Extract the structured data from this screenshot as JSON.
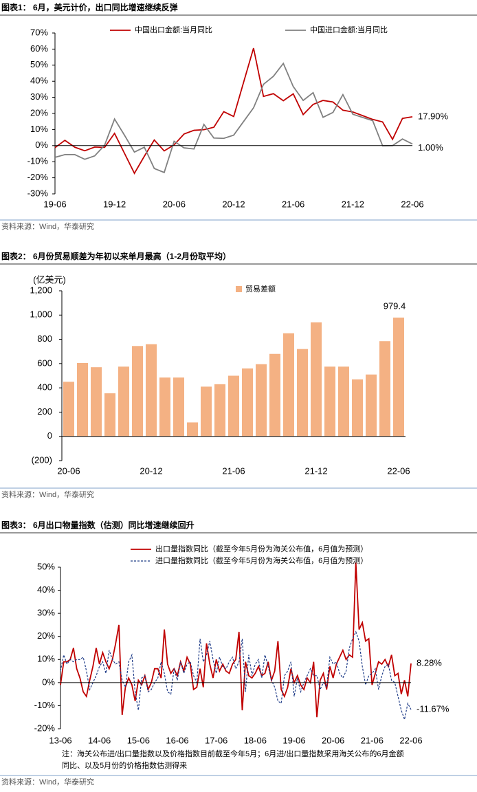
{
  "chart_data": [
    {
      "type": "line",
      "title": "图表1： 6月，美元计价，出口同比增速继续反弹",
      "source": "资料来源：Wind，华泰研究",
      "categories": [
        "19-06",
        null,
        null,
        null,
        null,
        null,
        "19-12",
        null,
        null,
        null,
        null,
        null,
        "20-06",
        null,
        null,
        null,
        null,
        null,
        "20-12",
        null,
        null,
        null,
        null,
        null,
        "21-06",
        null,
        null,
        null,
        null,
        null,
        "21-12",
        null,
        null,
        null,
        null,
        null,
        "22-06"
      ],
      "series": [
        {
          "name": "中国出口金额:当月同比",
          "color": "#c00000",
          "end_label": "17.90%",
          "values": [
            -1.3,
            3.3,
            -1.0,
            -3.2,
            -0.9,
            -1.1,
            7.6,
            -4.8,
            -17.2,
            -6.6,
            3.5,
            -3.3,
            0.5,
            7.2,
            9.5,
            9.9,
            11.4,
            21.1,
            18.1,
            39.4,
            60.6,
            30.6,
            32.3,
            27.9,
            32.2,
            19.3,
            25.6,
            28.1,
            27.1,
            22.0,
            20.9,
            18.6,
            16.3,
            14.7,
            3.9,
            16.9,
            17.9
          ]
        },
        {
          "name": "中国进口金额:当月同比",
          "color": "#808080",
          "end_label": "1.00%",
          "values": [
            -7.3,
            -5.6,
            -5.6,
            -8.5,
            -6.4,
            0.3,
            16.5,
            6.5,
            -4.0,
            -1.0,
            -14.2,
            -16.7,
            2.7,
            -1.4,
            -2.1,
            13.2,
            4.7,
            4.5,
            6.5,
            15.0,
            23.5,
            38.1,
            43.1,
            51.1,
            36.7,
            28.1,
            32.9,
            17.6,
            20.6,
            31.7,
            19.5,
            17.5,
            15.5,
            -0.1,
            0.0,
            4.1,
            1.0
          ]
        }
      ],
      "ylim": [
        -30,
        70
      ],
      "yticks": [
        {
          "value": -30,
          "label": "-30%"
        },
        {
          "value": -20,
          "label": "-20%"
        },
        {
          "value": -10,
          "label": "-10%"
        },
        {
          "value": 0,
          "label": "0%"
        },
        {
          "value": 10,
          "label": "10%"
        },
        {
          "value": 20,
          "label": "20%"
        },
        {
          "value": 30,
          "label": "30%"
        },
        {
          "value": 40,
          "label": "40%"
        },
        {
          "value": 50,
          "label": "50%"
        },
        {
          "value": 60,
          "label": "60%"
        },
        {
          "value": 70,
          "label": "70%"
        }
      ],
      "legend": "top"
    },
    {
      "type": "bar",
      "title": "图表2： 6月份贸易顺差为年初以来单月最高（1-2月份取平均）",
      "source": "资料来源：Wind，华泰研究",
      "y_label": "(亿美元)",
      "categories": [
        "20-06",
        null,
        null,
        null,
        null,
        null,
        "20-12",
        null,
        null,
        null,
        null,
        null,
        "21-06",
        null,
        null,
        null,
        null,
        null,
        "21-12",
        null,
        null,
        null,
        null,
        null,
        "22-06"
      ],
      "series": [
        {
          "name": "贸易差额",
          "color": "#f4b183",
          "values": [
            450,
            605,
            570,
            355,
            575,
            745,
            760,
            485,
            485,
            115,
            410,
            430,
            500,
            560,
            595,
            680,
            850,
            720,
            940,
            575,
            575,
            470,
            510,
            785,
            979.4
          ]
        }
      ],
      "label_last": true,
      "ylim": [
        -200,
        1200
      ],
      "yticks": [
        {
          "value": -200,
          "label": "(200)"
        },
        0,
        200,
        400,
        600,
        800,
        {
          "value": 1000,
          "label": "1,000"
        },
        {
          "value": 1200,
          "label": "1,200"
        }
      ],
      "legend": "top"
    },
    {
      "type": "line",
      "title": "图表3： 6月出口物量指数（估测）同比增速继续回升",
      "note": "注：海关公布进/出口量指数以及价格指数目前截至今年5月；6月进/出口量指数采用海关公布的6月金额同比、以及5月份的价格指数估测得来",
      "source": "资料来源：Wind，华泰研究",
      "categories": [
        "13-06",
        null,
        null,
        null,
        null,
        null,
        null,
        null,
        null,
        null,
        null,
        null,
        "14-06",
        null,
        null,
        null,
        null,
        null,
        null,
        null,
        null,
        null,
        null,
        null,
        "15-06",
        null,
        null,
        null,
        null,
        null,
        null,
        null,
        null,
        null,
        null,
        null,
        "16-06",
        null,
        null,
        null,
        null,
        null,
        null,
        null,
        null,
        null,
        null,
        null,
        "17-06",
        null,
        null,
        null,
        null,
        null,
        null,
        null,
        null,
        null,
        null,
        null,
        "18-06",
        null,
        null,
        null,
        null,
        null,
        null,
        null,
        null,
        null,
        null,
        null,
        "19-06",
        null,
        null,
        null,
        null,
        null,
        null,
        null,
        null,
        null,
        null,
        null,
        "20-06",
        null,
        null,
        null,
        null,
        null,
        null,
        null,
        null,
        null,
        null,
        null,
        "21-06",
        null,
        null,
        null,
        null,
        null,
        null,
        null,
        null,
        null,
        null,
        null,
        "22-06"
      ],
      "series": [
        {
          "name": "出口量指数同比（截至今年5月份为海关公布值，6月值为预测）",
          "color": "#c00000",
          "dash": false,
          "end_label": "8.28%",
          "values": [
            -1,
            9,
            9,
            10,
            15,
            6,
            2,
            -4,
            -6,
            1,
            7,
            15,
            8,
            13,
            9,
            6,
            10,
            17,
            25,
            -14,
            -2,
            2,
            -1,
            -8,
            1,
            -1,
            3,
            -3,
            0,
            6,
            6,
            2,
            23,
            8,
            4,
            6,
            3,
            9,
            5,
            11,
            8,
            -3,
            -2,
            6,
            -2,
            17,
            8,
            2,
            10,
            5,
            8,
            5,
            4,
            8,
            10,
            22,
            -12,
            9,
            3,
            2,
            4,
            7,
            3,
            4,
            9,
            1,
            5,
            18,
            -3,
            -6,
            -2,
            6,
            0,
            3,
            -1,
            -3,
            2,
            0,
            9,
            -15,
            1,
            4,
            -3,
            7,
            2,
            8,
            11,
            14,
            10,
            12,
            11,
            52,
            23,
            26,
            18,
            19,
            -1,
            4,
            9,
            8,
            10,
            7,
            12,
            3,
            4,
            -5,
            1,
            -6,
            8.28
          ]
        },
        {
          "name": "进口量指数同比（截至今年5月份为海关公布值，6月值为预测）",
          "color": "#1f3c88",
          "dash": true,
          "end_label": "-11.67%",
          "values": [
            5,
            12,
            8,
            10,
            9,
            10,
            10,
            11,
            5,
            -3,
            0,
            3,
            7,
            9,
            4,
            14,
            10,
            8,
            9,
            1,
            -2,
            9,
            12,
            -4,
            -12,
            2,
            3,
            -4,
            -3,
            0,
            2,
            9,
            4,
            -4,
            -5,
            6,
            1,
            9,
            4,
            8,
            9,
            3,
            0,
            19,
            9,
            12,
            18,
            10,
            4,
            11,
            7,
            6,
            9,
            11,
            6,
            9,
            19,
            -4,
            12,
            3,
            8,
            10,
            2,
            12,
            7,
            1,
            -2,
            -8,
            -9,
            3,
            5,
            9,
            -6,
            2,
            -4,
            0,
            3,
            6,
            3,
            3,
            -3,
            0,
            -2,
            11,
            8,
            9,
            4,
            2,
            5,
            15,
            19,
            22,
            18,
            7,
            -1,
            3,
            4,
            6,
            -3,
            3,
            7,
            8,
            1,
            0,
            -6,
            -12,
            -16,
            -9,
            -11.67
          ]
        }
      ],
      "ylim": [
        -20,
        50
      ],
      "yticks": [
        {
          "value": -20,
          "label": "-20%"
        },
        {
          "value": -10,
          "label": "-10%"
        },
        {
          "value": 0,
          "label": "0%"
        },
        {
          "value": 10,
          "label": "10%"
        },
        {
          "value": 20,
          "label": "20%"
        },
        {
          "value": 30,
          "label": "30%"
        },
        {
          "value": 40,
          "label": "40%"
        },
        {
          "value": 50,
          "label": "50%"
        }
      ],
      "legend": "top"
    }
  ]
}
